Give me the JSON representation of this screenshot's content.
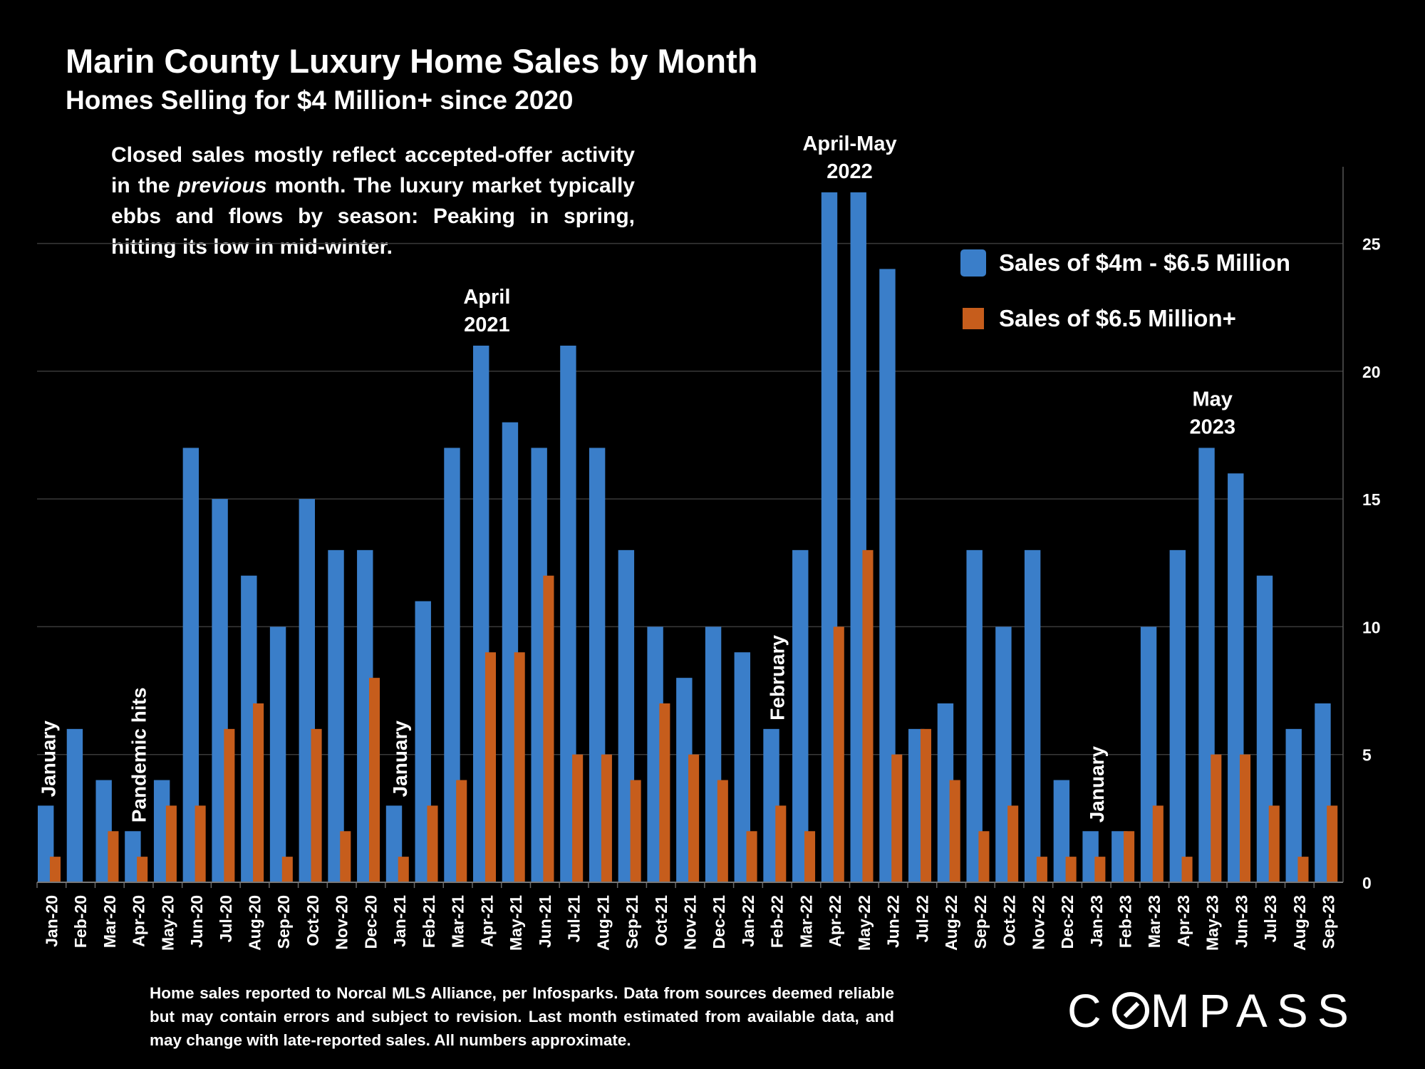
{
  "title": "Marin County Luxury Home Sales by Month",
  "subtitle": "Homes Selling for $4 Million+ since 2020",
  "note": {
    "before": "Closed sales mostly reflect accepted-offer activity in the ",
    "emphasis": "previous",
    "after": " month. The luxury market typically ebbs and flows by season: Peaking in spring, hitting its low in mid-winter."
  },
  "footer": "Home sales reported to Norcal MLS Alliance, per Infosparks. Data from sources deemed reliable but may contain errors and subject to revision.  Last month estimated from available data, and may change with late-reported sales. All numbers approximate.",
  "logo": {
    "before": "C",
    "after": "MPASS"
  },
  "colors": {
    "blue": "#3a7ec9",
    "orange": "#c65d1c",
    "grid": "#3a3a3a",
    "background": "#000000"
  },
  "chart_data": {
    "type": "bar",
    "categories": [
      "Jan-20",
      "Feb-20",
      "Mar-20",
      "Apr-20",
      "May-20",
      "Jun-20",
      "Jul-20",
      "Aug-20",
      "Sep-20",
      "Oct-20",
      "Nov-20",
      "Dec-20",
      "Jan-21",
      "Feb-21",
      "Mar-21",
      "Apr-21",
      "May-21",
      "Jun-21",
      "Jul-21",
      "Aug-21",
      "Sep-21",
      "Oct-21",
      "Nov-21",
      "Dec-21",
      "Jan-22",
      "Feb-22",
      "Mar-22",
      "Apr-22",
      "May-22",
      "Jun-22",
      "Jul-22",
      "Aug-22",
      "Sep-22",
      "Oct-22",
      "Nov-22",
      "Dec-22",
      "Jan-23",
      "Feb-23",
      "Mar-23",
      "Apr-23",
      "May-23",
      "Jun-23",
      "Jul-23",
      "Aug-23",
      "Sep-23"
    ],
    "series": [
      {
        "name": "Sales of $4m - $6.5 Million",
        "color": "#3a7ec9",
        "values": [
          3,
          6,
          4,
          2,
          4,
          17,
          15,
          12,
          10,
          15,
          13,
          13,
          3,
          11,
          17,
          21,
          18,
          17,
          21,
          17,
          13,
          10,
          8,
          10,
          9,
          6,
          13,
          27,
          27,
          24,
          6,
          7,
          13,
          10,
          13,
          4,
          2,
          2,
          10,
          13,
          17,
          16,
          12,
          6,
          7
        ]
      },
      {
        "name": "Sales of $6.5 Million+",
        "color": "#c65d1c",
        "values": [
          1,
          0,
          2,
          1,
          3,
          3,
          6,
          7,
          1,
          6,
          2,
          8,
          1,
          3,
          4,
          9,
          9,
          12,
          5,
          5,
          4,
          7,
          5,
          4,
          2,
          3,
          2,
          10,
          13,
          5,
          6,
          4,
          2,
          3,
          1,
          1,
          1,
          2,
          3,
          1,
          5,
          5,
          3,
          1,
          3
        ]
      }
    ],
    "ylim": [
      0,
      28
    ],
    "yticks": [
      0,
      5,
      10,
      15,
      20,
      25
    ],
    "y_axis_side": "right",
    "grid": true,
    "legend": "top-right",
    "annotations": [
      {
        "text": [
          "January"
        ],
        "index": 0,
        "vertical": true
      },
      {
        "text": [
          "Pandemic hits"
        ],
        "index": 3,
        "vertical": true
      },
      {
        "text": [
          "January"
        ],
        "index": 12,
        "vertical": true
      },
      {
        "text": [
          "April",
          "2021"
        ],
        "index": 15,
        "vertical": false
      },
      {
        "text": [
          "February"
        ],
        "index": 25,
        "vertical": true
      },
      {
        "text": [
          "April-May",
          "2022"
        ],
        "index": 27.5,
        "vertical": false
      },
      {
        "text": [
          "January"
        ],
        "index": 36,
        "vertical": true
      },
      {
        "text": [
          "May",
          "2023"
        ],
        "index": 40,
        "vertical": false
      }
    ]
  }
}
